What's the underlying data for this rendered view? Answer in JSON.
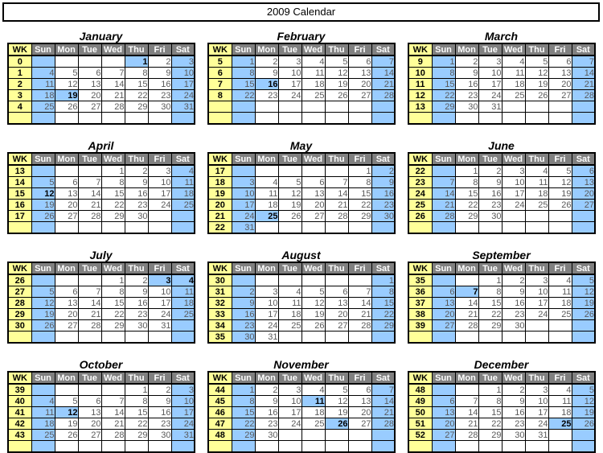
{
  "title": "2009 Calendar",
  "colors": {
    "header_bg": "#808080",
    "header_text": "#FFFFFF",
    "week_number_bg": "#FFFF99",
    "highlight_bg": "#99CCFF",
    "date_text": "#595959",
    "border": "#000000"
  },
  "day_headers": [
    "WK",
    "Sun",
    "Mon",
    "Tue",
    "Wed",
    "Thu",
    "Fri",
    "Sat"
  ],
  "months": [
    {
      "name": "January",
      "holidays": [
        1,
        19
      ],
      "weeks": [
        {
          "wk": "0",
          "days": [
            "",
            "",
            "",
            "",
            "1",
            "2",
            "3"
          ]
        },
        {
          "wk": "1",
          "days": [
            "4",
            "5",
            "6",
            "7",
            "8",
            "9",
            "10"
          ]
        },
        {
          "wk": "2",
          "days": [
            "11",
            "12",
            "13",
            "14",
            "15",
            "16",
            "17"
          ]
        },
        {
          "wk": "3",
          "days": [
            "18",
            "19",
            "20",
            "21",
            "22",
            "23",
            "24"
          ]
        },
        {
          "wk": "4",
          "days": [
            "25",
            "26",
            "27",
            "28",
            "29",
            "30",
            "31"
          ]
        },
        {
          "wk": "",
          "days": [
            "",
            "",
            "",
            "",
            "",
            "",
            ""
          ]
        }
      ]
    },
    {
      "name": "February",
      "holidays": [
        16
      ],
      "weeks": [
        {
          "wk": "5",
          "days": [
            "1",
            "2",
            "3",
            "4",
            "5",
            "6",
            "7"
          ]
        },
        {
          "wk": "6",
          "days": [
            "8",
            "9",
            "10",
            "11",
            "12",
            "13",
            "14"
          ]
        },
        {
          "wk": "7",
          "days": [
            "15",
            "16",
            "17",
            "18",
            "19",
            "20",
            "21"
          ]
        },
        {
          "wk": "8",
          "days": [
            "22",
            "23",
            "24",
            "25",
            "26",
            "27",
            "28"
          ]
        },
        {
          "wk": "",
          "days": [
            "",
            "",
            "",
            "",
            "",
            "",
            ""
          ]
        },
        {
          "wk": "",
          "days": [
            "",
            "",
            "",
            "",
            "",
            "",
            ""
          ]
        }
      ]
    },
    {
      "name": "March",
      "holidays": [],
      "weeks": [
        {
          "wk": "9",
          "days": [
            "1",
            "2",
            "3",
            "4",
            "5",
            "6",
            "7"
          ]
        },
        {
          "wk": "10",
          "days": [
            "8",
            "9",
            "10",
            "11",
            "12",
            "13",
            "14"
          ]
        },
        {
          "wk": "11",
          "days": [
            "15",
            "16",
            "17",
            "18",
            "19",
            "20",
            "21"
          ]
        },
        {
          "wk": "12",
          "days": [
            "22",
            "23",
            "24",
            "25",
            "26",
            "27",
            "28"
          ]
        },
        {
          "wk": "13",
          "days": [
            "29",
            "30",
            "31",
            "",
            "",
            "",
            ""
          ]
        },
        {
          "wk": "",
          "days": [
            "",
            "",
            "",
            "",
            "",
            "",
            ""
          ]
        }
      ]
    },
    {
      "name": "April",
      "holidays": [
        12
      ],
      "weeks": [
        {
          "wk": "13",
          "days": [
            "",
            "",
            "",
            "1",
            "2",
            "3",
            "4"
          ]
        },
        {
          "wk": "14",
          "days": [
            "5",
            "6",
            "7",
            "8",
            "9",
            "10",
            "11"
          ]
        },
        {
          "wk": "15",
          "days": [
            "12",
            "13",
            "14",
            "15",
            "16",
            "17",
            "18"
          ]
        },
        {
          "wk": "16",
          "days": [
            "19",
            "20",
            "21",
            "22",
            "23",
            "24",
            "25"
          ]
        },
        {
          "wk": "17",
          "days": [
            "26",
            "27",
            "28",
            "29",
            "30",
            "",
            ""
          ]
        },
        {
          "wk": "",
          "days": [
            "",
            "",
            "",
            "",
            "",
            "",
            ""
          ]
        }
      ]
    },
    {
      "name": "May",
      "holidays": [
        25
      ],
      "weeks": [
        {
          "wk": "17",
          "days": [
            "",
            "",
            "",
            "",
            "",
            "1",
            "2"
          ]
        },
        {
          "wk": "18",
          "days": [
            "3",
            "4",
            "5",
            "6",
            "7",
            "8",
            "9"
          ]
        },
        {
          "wk": "19",
          "days": [
            "10",
            "11",
            "12",
            "13",
            "14",
            "15",
            "16"
          ]
        },
        {
          "wk": "20",
          "days": [
            "17",
            "18",
            "19",
            "20",
            "21",
            "22",
            "23"
          ]
        },
        {
          "wk": "21",
          "days": [
            "24",
            "25",
            "26",
            "27",
            "28",
            "29",
            "30"
          ]
        },
        {
          "wk": "22",
          "days": [
            "31",
            "",
            "",
            "",
            "",
            "",
            ""
          ]
        }
      ]
    },
    {
      "name": "June",
      "holidays": [],
      "weeks": [
        {
          "wk": "22",
          "days": [
            "",
            "1",
            "2",
            "3",
            "4",
            "5",
            "6"
          ]
        },
        {
          "wk": "23",
          "days": [
            "7",
            "8",
            "9",
            "10",
            "11",
            "12",
            "13"
          ]
        },
        {
          "wk": "24",
          "days": [
            "14",
            "15",
            "16",
            "17",
            "18",
            "19",
            "20"
          ]
        },
        {
          "wk": "25",
          "days": [
            "21",
            "22",
            "23",
            "24",
            "25",
            "26",
            "27"
          ]
        },
        {
          "wk": "26",
          "days": [
            "28",
            "29",
            "30",
            "",
            "",
            "",
            ""
          ]
        },
        {
          "wk": "",
          "days": [
            "",
            "",
            "",
            "",
            "",
            "",
            ""
          ]
        }
      ]
    },
    {
      "name": "July",
      "holidays": [
        3,
        4
      ],
      "weeks": [
        {
          "wk": "26",
          "days": [
            "",
            "",
            "",
            "1",
            "2",
            "3",
            "4"
          ]
        },
        {
          "wk": "27",
          "days": [
            "5",
            "6",
            "7",
            "8",
            "9",
            "10",
            "11"
          ]
        },
        {
          "wk": "28",
          "days": [
            "12",
            "13",
            "14",
            "15",
            "16",
            "17",
            "18"
          ]
        },
        {
          "wk": "29",
          "days": [
            "19",
            "20",
            "21",
            "22",
            "23",
            "24",
            "25"
          ]
        },
        {
          "wk": "30",
          "days": [
            "26",
            "27",
            "28",
            "29",
            "30",
            "31",
            ""
          ]
        },
        {
          "wk": "",
          "days": [
            "",
            "",
            "",
            "",
            "",
            "",
            ""
          ]
        }
      ]
    },
    {
      "name": "August",
      "holidays": [],
      "weeks": [
        {
          "wk": "30",
          "days": [
            "",
            "",
            "",
            "",
            "",
            "",
            "1"
          ]
        },
        {
          "wk": "31",
          "days": [
            "2",
            "3",
            "4",
            "5",
            "6",
            "7",
            "8"
          ]
        },
        {
          "wk": "32",
          "days": [
            "9",
            "10",
            "11",
            "12",
            "13",
            "14",
            "15"
          ]
        },
        {
          "wk": "33",
          "days": [
            "16",
            "17",
            "18",
            "19",
            "20",
            "21",
            "22"
          ]
        },
        {
          "wk": "34",
          "days": [
            "23",
            "24",
            "25",
            "26",
            "27",
            "28",
            "29"
          ]
        },
        {
          "wk": "35",
          "days": [
            "30",
            "31",
            "",
            "",
            "",
            "",
            ""
          ]
        }
      ]
    },
    {
      "name": "September",
      "holidays": [
        7
      ],
      "weeks": [
        {
          "wk": "35",
          "days": [
            "",
            "",
            "1",
            "2",
            "3",
            "4",
            "5"
          ]
        },
        {
          "wk": "36",
          "days": [
            "6",
            "7",
            "8",
            "9",
            "10",
            "11",
            "12"
          ]
        },
        {
          "wk": "37",
          "days": [
            "13",
            "14",
            "15",
            "16",
            "17",
            "18",
            "19"
          ]
        },
        {
          "wk": "38",
          "days": [
            "20",
            "21",
            "22",
            "23",
            "24",
            "25",
            "26"
          ]
        },
        {
          "wk": "39",
          "days": [
            "27",
            "28",
            "29",
            "30",
            "",
            "",
            ""
          ]
        },
        {
          "wk": "",
          "days": [
            "",
            "",
            "",
            "",
            "",
            "",
            ""
          ]
        }
      ]
    },
    {
      "name": "October",
      "holidays": [
        12
      ],
      "weeks": [
        {
          "wk": "39",
          "days": [
            "",
            "",
            "",
            "",
            "1",
            "2",
            "3"
          ]
        },
        {
          "wk": "40",
          "days": [
            "4",
            "5",
            "6",
            "7",
            "8",
            "9",
            "10"
          ]
        },
        {
          "wk": "41",
          "days": [
            "11",
            "12",
            "13",
            "14",
            "15",
            "16",
            "17"
          ]
        },
        {
          "wk": "42",
          "days": [
            "18",
            "19",
            "20",
            "21",
            "22",
            "23",
            "24"
          ]
        },
        {
          "wk": "43",
          "days": [
            "25",
            "26",
            "27",
            "28",
            "29",
            "30",
            "31"
          ]
        },
        {
          "wk": "",
          "days": [
            "",
            "",
            "",
            "",
            "",
            "",
            ""
          ]
        }
      ]
    },
    {
      "name": "November",
      "holidays": [
        11,
        26
      ],
      "weeks": [
        {
          "wk": "44",
          "days": [
            "1",
            "2",
            "3",
            "4",
            "5",
            "6",
            "7"
          ]
        },
        {
          "wk": "45",
          "days": [
            "8",
            "9",
            "10",
            "11",
            "12",
            "13",
            "14"
          ]
        },
        {
          "wk": "46",
          "days": [
            "15",
            "16",
            "17",
            "18",
            "19",
            "20",
            "21"
          ]
        },
        {
          "wk": "47",
          "days": [
            "22",
            "23",
            "24",
            "25",
            "26",
            "27",
            "28"
          ]
        },
        {
          "wk": "48",
          "days": [
            "29",
            "30",
            "",
            "",
            "",
            "",
            ""
          ]
        },
        {
          "wk": "",
          "days": [
            "",
            "",
            "",
            "",
            "",
            "",
            ""
          ]
        }
      ]
    },
    {
      "name": "December",
      "holidays": [
        25
      ],
      "weeks": [
        {
          "wk": "48",
          "days": [
            "",
            "",
            "1",
            "2",
            "3",
            "4",
            "5"
          ]
        },
        {
          "wk": "49",
          "days": [
            "6",
            "7",
            "8",
            "9",
            "10",
            "11",
            "12"
          ]
        },
        {
          "wk": "50",
          "days": [
            "13",
            "14",
            "15",
            "16",
            "17",
            "18",
            "19"
          ]
        },
        {
          "wk": "51",
          "days": [
            "20",
            "21",
            "22",
            "23",
            "24",
            "25",
            "26"
          ]
        },
        {
          "wk": "52",
          "days": [
            "27",
            "28",
            "29",
            "30",
            "31",
            "",
            ""
          ]
        },
        {
          "wk": "",
          "days": [
            "",
            "",
            "",
            "",
            "",
            "",
            ""
          ]
        }
      ]
    }
  ]
}
